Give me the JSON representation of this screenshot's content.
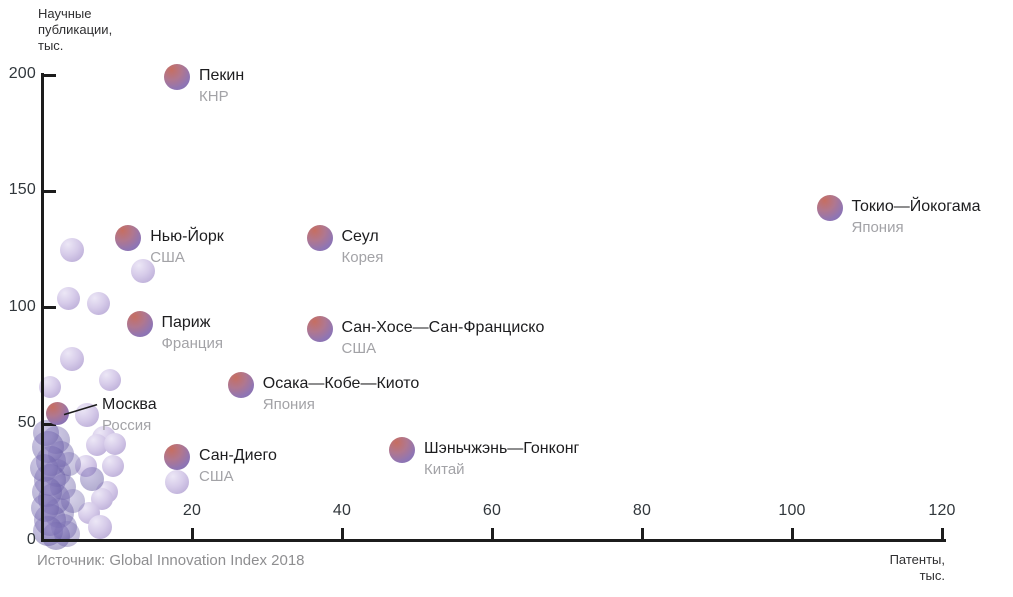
{
  "chart_data": {
    "type": "scatter",
    "title": "",
    "ylabel": "Научные публикации, тыс.",
    "ylabel_lines": [
      "Научные",
      "публикации,",
      "тыс."
    ],
    "xlabel": "Патенты, тыс.",
    "xlabel_lines": [
      "Патенты,",
      "тыс."
    ],
    "source": "Источник: Global Innovation Index 2018",
    "xlim": [
      0,
      120
    ],
    "ylim": [
      0,
      200
    ],
    "x_ticks": [
      20,
      40,
      60,
      80,
      100,
      120
    ],
    "y_ticks": [
      0,
      50,
      100,
      150,
      200
    ],
    "grid": false,
    "legend": "none",
    "cities": [
      {
        "name": "Пекин",
        "country": "КНР",
        "x": 18,
        "y": 199,
        "r": 13
      },
      {
        "name": "Токио—Йокогама",
        "country": "Япония",
        "x": 105,
        "y": 143,
        "r": 13
      },
      {
        "name": "Нью-Йорк",
        "country": "США",
        "x": 11.5,
        "y": 130,
        "r": 13
      },
      {
        "name": "Сеул",
        "country": "Корея",
        "x": 37,
        "y": 130,
        "r": 13
      },
      {
        "name": "Париж",
        "country": "Франция",
        "x": 13,
        "y": 93,
        "r": 13
      },
      {
        "name": "Сан-Хосе—Сан-Франциско",
        "country": "США",
        "x": 37,
        "y": 91,
        "r": 13
      },
      {
        "name": "Осака—Кобе—Киото",
        "country": "Япония",
        "x": 26.5,
        "y": 67,
        "r": 13
      },
      {
        "name": "Москва",
        "country": "Россия",
        "x": 2,
        "y": 54.5,
        "r": 11.5,
        "callout": true
      },
      {
        "name": "Сан-Диего",
        "country": "США",
        "x": 18,
        "y": 36,
        "r": 13
      },
      {
        "name": "Шэньчжэнь—Гонконг",
        "country": "Китай",
        "x": 48,
        "y": 39,
        "r": 13
      }
    ],
    "background_points": [
      {
        "x": 4,
        "y": 125,
        "r": 12
      },
      {
        "x": 13.4,
        "y": 116,
        "r": 12
      },
      {
        "x": 3.5,
        "y": 104,
        "r": 11.5
      },
      {
        "x": 7.5,
        "y": 102,
        "r": 11.5
      },
      {
        "x": 4,
        "y": 78,
        "r": 12
      },
      {
        "x": 9,
        "y": 69,
        "r": 11
      },
      {
        "x": 1,
        "y": 66,
        "r": 11
      },
      {
        "x": 6,
        "y": 54,
        "r": 12
      },
      {
        "x": 8.3,
        "y": 44,
        "r": 12
      },
      {
        "x": 7.3,
        "y": 41,
        "r": 11
      },
      {
        "x": 9.7,
        "y": 41.5,
        "r": 11
      },
      {
        "x": 9.5,
        "y": 32,
        "r": 11
      },
      {
        "x": 5.9,
        "y": 32,
        "r": 11
      },
      {
        "x": 8.6,
        "y": 21,
        "r": 11
      },
      {
        "x": 8,
        "y": 18,
        "r": 11
      },
      {
        "x": 6.3,
        "y": 12,
        "r": 11
      },
      {
        "x": 7.7,
        "y": 6,
        "r": 12
      },
      {
        "x": 18,
        "y": 25,
        "r": 12
      }
    ],
    "cluster_points": [
      {
        "x": 0.5,
        "y": 46,
        "r": 13,
        "o": 0.5
      },
      {
        "x": 1.8,
        "y": 43,
        "r": 14,
        "o": 0.45
      },
      {
        "x": 0.8,
        "y": 40,
        "r": 16,
        "o": 0.5
      },
      {
        "x": 2.5,
        "y": 37,
        "r": 13,
        "o": 0.45
      },
      {
        "x": 1.2,
        "y": 34,
        "r": 15,
        "o": 0.5
      },
      {
        "x": 0.3,
        "y": 31,
        "r": 14,
        "o": 0.5
      },
      {
        "x": 2.0,
        "y": 29,
        "r": 14,
        "o": 0.45
      },
      {
        "x": 1.0,
        "y": 26,
        "r": 16,
        "o": 0.5
      },
      {
        "x": 2.8,
        "y": 23,
        "r": 13,
        "o": 0.45
      },
      {
        "x": 0.6,
        "y": 21,
        "r": 15,
        "o": 0.5
      },
      {
        "x": 1.6,
        "y": 18,
        "r": 16,
        "o": 0.5
      },
      {
        "x": 0.4,
        "y": 14,
        "r": 14,
        "o": 0.5
      },
      {
        "x": 2.3,
        "y": 12,
        "r": 15,
        "o": 0.45
      },
      {
        "x": 1.1,
        "y": 9,
        "r": 16,
        "o": 0.5
      },
      {
        "x": 2.9,
        "y": 6,
        "r": 13,
        "o": 0.45
      },
      {
        "x": 0.8,
        "y": 4,
        "r": 15,
        "o": 0.5
      },
      {
        "x": 1.9,
        "y": 2,
        "r": 14,
        "o": 0.5
      },
      {
        "x": 3.6,
        "y": 33,
        "r": 12,
        "o": 0.4
      },
      {
        "x": 4.1,
        "y": 17,
        "r": 12,
        "o": 0.4
      },
      {
        "x": 3.3,
        "y": 3,
        "r": 13,
        "o": 0.4
      },
      {
        "x": 6.7,
        "y": 26.5,
        "r": 12,
        "o": 0.5
      }
    ],
    "colors": {
      "highlight_gradient": [
        "#c66e61",
        "#b0778f",
        "#8f75b4",
        "#7f6dab"
      ],
      "light_bubble": [
        "#ece7f6",
        "#d6cbe9",
        "#b3a4d2"
      ],
      "cluster_bubble": "#584c99",
      "axis": "#1c1c1c",
      "tick_text": "#31373c",
      "city_name_text": "#1d1d1f",
      "country_text": "#a3a3a7",
      "source_text": "#8e8e90"
    }
  }
}
